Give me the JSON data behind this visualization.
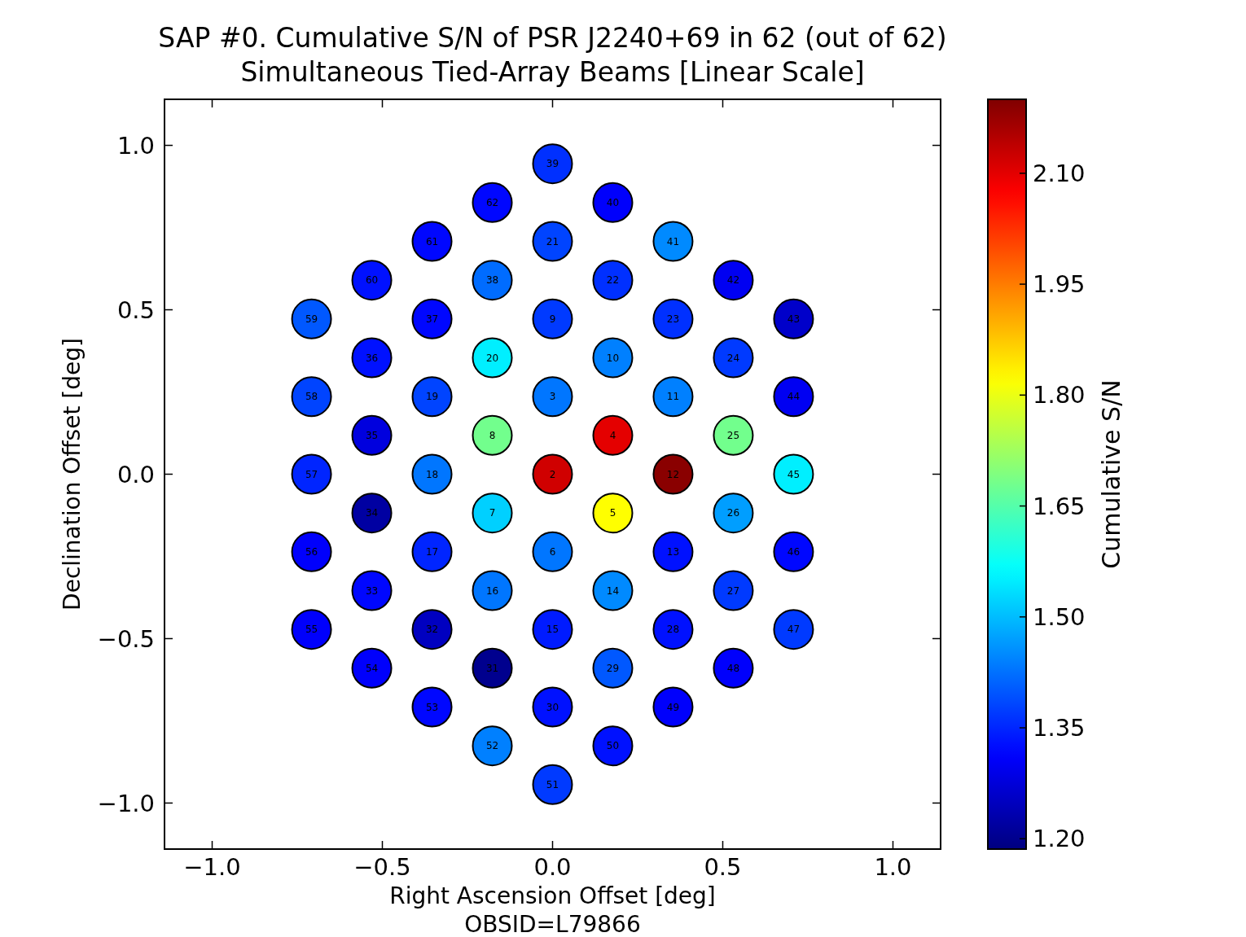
{
  "chart_data": {
    "type": "scatter",
    "title": "SAP #0. Cumulative S/N of PSR J2240+69 in 62 (out of 62)\nSimultaneous Tied-Array Beams [Linear Scale]",
    "xlabel": "Right Ascension Offset [deg]",
    "ylabel": "Declination Offset [deg]",
    "clabel": "Cumulative S/N",
    "annotations": [
      "OBSID=L79866",
      {
        "text": "2",
        "x": 0,
        "y": 0
      },
      {
        "text": "3",
        "x": 0,
        "y": 0.236
      },
      {
        "text": "4",
        "x": 0.177,
        "y": 0.118
      },
      {
        "text": "5",
        "x": 0.177,
        "y": -0.118
      },
      {
        "text": "6",
        "x": 0,
        "y": -0.236
      },
      {
        "text": "7",
        "x": -0.177,
        "y": -0.118
      },
      {
        "text": "8",
        "x": -0.177,
        "y": 0.118
      },
      {
        "text": "9",
        "x": 0,
        "y": 0.472
      },
      {
        "text": "10",
        "x": 0.177,
        "y": 0.354
      },
      {
        "text": "11",
        "x": 0.354,
        "y": 0.236
      },
      {
        "text": "12",
        "x": 0.354,
        "y": 0
      },
      {
        "text": "13",
        "x": 0.354,
        "y": -0.236
      },
      {
        "text": "14",
        "x": 0.177,
        "y": -0.354
      },
      {
        "text": "15",
        "x": 0,
        "y": -0.472
      },
      {
        "text": "16",
        "x": -0.177,
        "y": -0.354
      },
      {
        "text": "17",
        "x": -0.354,
        "y": -0.236
      },
      {
        "text": "18",
        "x": -0.354,
        "y": 0
      },
      {
        "text": "19",
        "x": -0.354,
        "y": 0.236
      },
      {
        "text": "20",
        "x": -0.177,
        "y": 0.354
      },
      {
        "text": "21",
        "x": 0,
        "y": 0.708
      },
      {
        "text": "22",
        "x": 0.177,
        "y": 0.59
      },
      {
        "text": "23",
        "x": 0.354,
        "y": 0.472
      },
      {
        "text": "24",
        "x": 0.531,
        "y": 0.354
      },
      {
        "text": "25",
        "x": 0.531,
        "y": 0.118
      },
      {
        "text": "26",
        "x": 0.531,
        "y": -0.118
      },
      {
        "text": "27",
        "x": 0.531,
        "y": -0.354
      },
      {
        "text": "28",
        "x": 0.354,
        "y": -0.472
      },
      {
        "text": "29",
        "x": 0.177,
        "y": -0.59
      },
      {
        "text": "30",
        "x": 0,
        "y": -0.708
      },
      {
        "text": "31",
        "x": -0.177,
        "y": -0.59
      },
      {
        "text": "32",
        "x": -0.354,
        "y": -0.472
      },
      {
        "text": "33",
        "x": -0.531,
        "y": -0.354
      },
      {
        "text": "34",
        "x": -0.531,
        "y": -0.118
      },
      {
        "text": "35",
        "x": -0.531,
        "y": 0.118
      },
      {
        "text": "36",
        "x": -0.531,
        "y": 0.354
      },
      {
        "text": "37",
        "x": -0.354,
        "y": 0.472
      },
      {
        "text": "38",
        "x": -0.177,
        "y": 0.59
      },
      {
        "text": "39",
        "x": 0,
        "y": 0.944
      },
      {
        "text": "40",
        "x": 0.177,
        "y": 0.826
      },
      {
        "text": "41",
        "x": 0.354,
        "y": 0.708
      },
      {
        "text": "42",
        "x": 0.531,
        "y": 0.59
      },
      {
        "text": "43",
        "x": 0.708,
        "y": 0.472
      },
      {
        "text": "44",
        "x": 0.708,
        "y": 0.236
      },
      {
        "text": "45",
        "x": 0.708,
        "y": 0
      },
      {
        "text": "46",
        "x": 0.708,
        "y": -0.236
      },
      {
        "text": "47",
        "x": 0.708,
        "y": -0.472
      },
      {
        "text": "48",
        "x": 0.531,
        "y": -0.59
      },
      {
        "text": "49",
        "x": 0.354,
        "y": -0.708
      },
      {
        "text": "50",
        "x": 0.177,
        "y": -0.826
      },
      {
        "text": "51",
        "x": 0,
        "y": -0.944
      },
      {
        "text": "52",
        "x": -0.177,
        "y": -0.826
      },
      {
        "text": "53",
        "x": -0.354,
        "y": -0.708
      },
      {
        "text": "54",
        "x": -0.531,
        "y": -0.59
      },
      {
        "text": "55",
        "x": -0.708,
        "y": -0.472
      },
      {
        "text": "56",
        "x": -0.708,
        "y": -0.236
      },
      {
        "text": "57",
        "x": -0.708,
        "y": 0
      },
      {
        "text": "58",
        "x": -0.708,
        "y": 0.236
      },
      {
        "text": "59",
        "x": -0.708,
        "y": 0.472
      },
      {
        "text": "60",
        "x": -0.531,
        "y": 0.59
      },
      {
        "text": "61",
        "x": -0.354,
        "y": 0.708
      },
      {
        "text": "62",
        "x": -0.177,
        "y": 0.826
      }
    ],
    "xlim": [
      -1.14,
      1.14
    ],
    "ylim": [
      -1.14,
      1.14
    ],
    "xticks": [
      {
        "value": -1,
        "label": "−1.0"
      },
      {
        "value": -0.5,
        "label": "−0.5"
      },
      {
        "value": 0,
        "label": "0.0"
      },
      {
        "value": 0.5,
        "label": "0.5"
      },
      {
        "value": 1,
        "label": "1.0"
      }
    ],
    "yticks": [
      {
        "value": -1,
        "label": "−1.0"
      },
      {
        "value": -0.5,
        "label": "−0.5"
      },
      {
        "value": 0,
        "label": "0.0"
      },
      {
        "value": 0.5,
        "label": "0.5"
      },
      {
        "value": 1,
        "label": "1.0"
      }
    ],
    "clim": [
      1.186,
      2.2
    ],
    "cticks": [
      {
        "value": 1.2,
        "label": "1.20"
      },
      {
        "value": 1.35,
        "label": "1.35"
      },
      {
        "value": 1.5,
        "label": "1.50"
      },
      {
        "value": 1.65,
        "label": "1.65"
      },
      {
        "value": 1.8,
        "label": "1.80"
      },
      {
        "value": 1.95,
        "label": "1.95"
      },
      {
        "value": 2.1,
        "label": "2.10"
      }
    ],
    "marker": "circle",
    "grid": false,
    "x": [
      0,
      0,
      0.177,
      0.177,
      0,
      -0.177,
      -0.177,
      0,
      0.177,
      0.354,
      0.354,
      0.354,
      0.177,
      0,
      -0.177,
      -0.354,
      -0.354,
      -0.354,
      -0.177,
      0,
      0.177,
      0.354,
      0.531,
      0.531,
      0.531,
      0.531,
      0.354,
      0.177,
      0,
      -0.177,
      -0.354,
      -0.531,
      -0.531,
      -0.531,
      -0.531,
      -0.354,
      -0.177,
      0,
      0.177,
      0.354,
      0.531,
      0.708,
      0.708,
      0.708,
      0.708,
      0.708,
      0.531,
      0.354,
      0.177,
      0,
      -0.177,
      -0.354,
      -0.531,
      -0.708,
      -0.708,
      -0.708,
      -0.708,
      -0.708,
      -0.531,
      -0.354,
      -0.177
    ],
    "values": [
      0,
      0.236,
      0.118,
      -0.118,
      -0.236,
      -0.118,
      0.118,
      0.472,
      0.354,
      0.236,
      0,
      -0.236,
      -0.354,
      -0.472,
      -0.354,
      -0.236,
      0,
      0.236,
      0.354,
      0.708,
      0.59,
      0.472,
      0.354,
      0.118,
      -0.118,
      -0.354,
      -0.472,
      -0.59,
      -0.708,
      -0.59,
      -0.472,
      -0.354,
      -0.118,
      0.118,
      0.354,
      0.472,
      0.59,
      0.944,
      0.826,
      0.708,
      0.59,
      0.472,
      0.236,
      0,
      -0.236,
      -0.472,
      -0.59,
      -0.708,
      -0.826,
      -0.944,
      -0.826,
      -0.708,
      -0.59,
      -0.472,
      -0.236,
      0,
      0.236,
      0.472,
      0.59,
      0.708,
      0.826
    ],
    "cvalues": [
      2.12,
      1.43,
      2.1,
      1.82,
      1.43,
      1.52,
      1.68,
      1.37,
      1.44,
      1.44,
      2.19,
      1.33,
      1.45,
      1.34,
      1.43,
      1.35,
      1.43,
      1.38,
      1.55,
      1.38,
      1.36,
      1.36,
      1.37,
      1.68,
      1.47,
      1.37,
      1.33,
      1.4,
      1.33,
      1.2,
      1.25,
      1.32,
      1.22,
      1.28,
      1.33,
      1.32,
      1.42,
      1.36,
      1.31,
      1.45,
      1.3,
      1.26,
      1.3,
      1.55,
      1.32,
      1.37,
      1.31,
      1.31,
      1.33,
      1.37,
      1.44,
      1.32,
      1.31,
      1.31,
      1.31,
      1.35,
      1.38,
      1.4,
      1.33,
      1.32,
      1.32
    ]
  }
}
